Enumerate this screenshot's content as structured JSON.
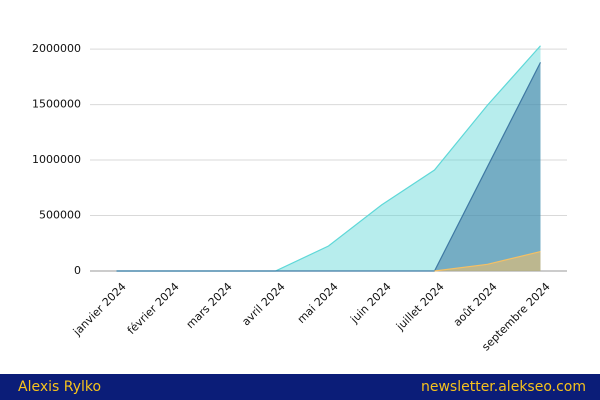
{
  "chart_data": {
    "type": "area",
    "categories": [
      "janvier 2024",
      "février 2024",
      "mars 2024",
      "avril 2024",
      "mai 2024",
      "juin 2024",
      "juillet 2024",
      "août 2024",
      "septembre 2024"
    ],
    "series": [
      {
        "color": "#5fd8d8",
        "values": [
          0,
          0,
          0,
          0,
          225000,
          595000,
          910000,
          1495000,
          2030000
        ]
      },
      {
        "color": "#3f79a3",
        "values": [
          0,
          0,
          0,
          0,
          0,
          0,
          0,
          940000,
          1880000
        ]
      },
      {
        "color": "#f5c064",
        "values": [
          null,
          null,
          null,
          null,
          null,
          null,
          0,
          60000,
          175000
        ]
      }
    ],
    "ylim": [
      0,
      2100000
    ],
    "yticks": [
      0,
      500000,
      1000000,
      1500000,
      2000000
    ],
    "grid": true
  },
  "footer": {
    "author": "Alexis Rylko",
    "site": "newsletter.alekseo.com"
  }
}
